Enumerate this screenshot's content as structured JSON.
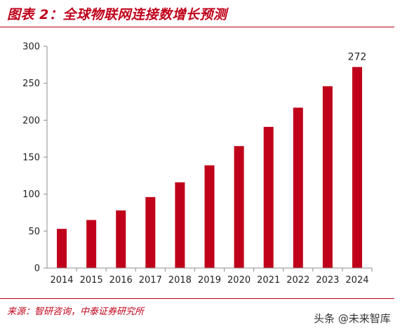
{
  "title": "图表 2：全球物联网连接数增长预测",
  "source": "来源：智研咨询，中泰证券研究所",
  "watermark": "头条 @未来智库",
  "colors": {
    "accent": "#c0001a",
    "bar": "#c0001a"
  },
  "chart_data": {
    "type": "bar",
    "categories": [
      "2014",
      "2015",
      "2016",
      "2017",
      "2018",
      "2019",
      "2020",
      "2021",
      "2022",
      "2023",
      "2024"
    ],
    "values": [
      53,
      65,
      78,
      96,
      116,
      139,
      165,
      191,
      217,
      246,
      272
    ],
    "data_labels": {
      "10": "272"
    },
    "yticks": [
      0,
      50,
      100,
      150,
      200,
      250,
      300
    ],
    "ylim": [
      0,
      300
    ],
    "title": "",
    "xlabel": "",
    "ylabel": "",
    "grid": false,
    "legend": "none"
  }
}
